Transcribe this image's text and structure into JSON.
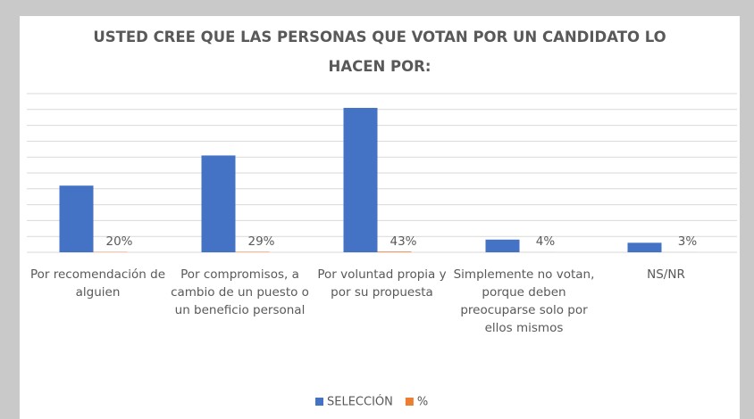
{
  "chart_data": {
    "type": "bar",
    "title": "USTED CREE QUE LAS PERSONAS QUE VOTAN POR UN CANDIDATO LO HACEN POR:",
    "categories": [
      "Por recomendación de alguien",
      "Por compromisos, a cambio de un puesto o un beneficio personal",
      "Por voluntad propia y por su propuesta",
      "Simplemente no votan, porque deben preocuparse solo por ellos mismos",
      "NS/NR"
    ],
    "series": [
      {
        "name": "SELECCIÓN",
        "color": "#4472c4",
        "values": [
          42,
          61,
          91,
          8,
          6
        ]
      },
      {
        "name": "%",
        "color": "#ed7d31",
        "values": [
          0.2,
          0.29,
          0.43,
          0.04,
          0.03
        ],
        "value_labels": [
          "20%",
          "29%",
          "43%",
          "4%",
          "3%"
        ]
      }
    ],
    "ylim": [
      0,
      100
    ],
    "yticks": [
      0,
      10,
      20,
      30,
      40,
      50,
      60,
      70,
      80,
      90,
      100
    ],
    "grid": true,
    "legend": "bottom"
  }
}
